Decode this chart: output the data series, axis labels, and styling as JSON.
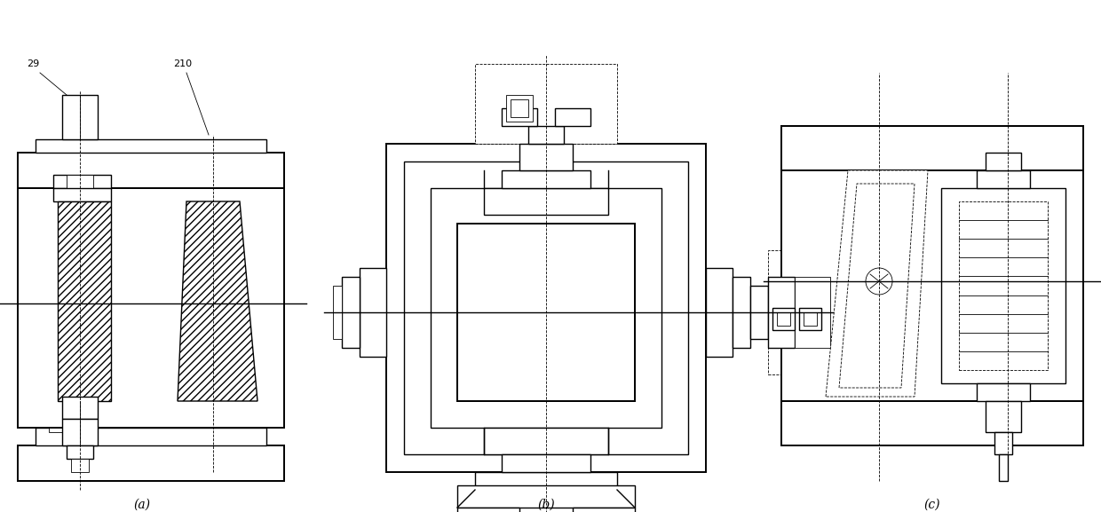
{
  "bg_color": "#ffffff",
  "label_a": "(a)",
  "label_b": "(b)",
  "label_c": "(c)",
  "label_29": "29",
  "label_210": "210",
  "fig_width": 12.4,
  "fig_height": 5.77,
  "dpi": 100
}
